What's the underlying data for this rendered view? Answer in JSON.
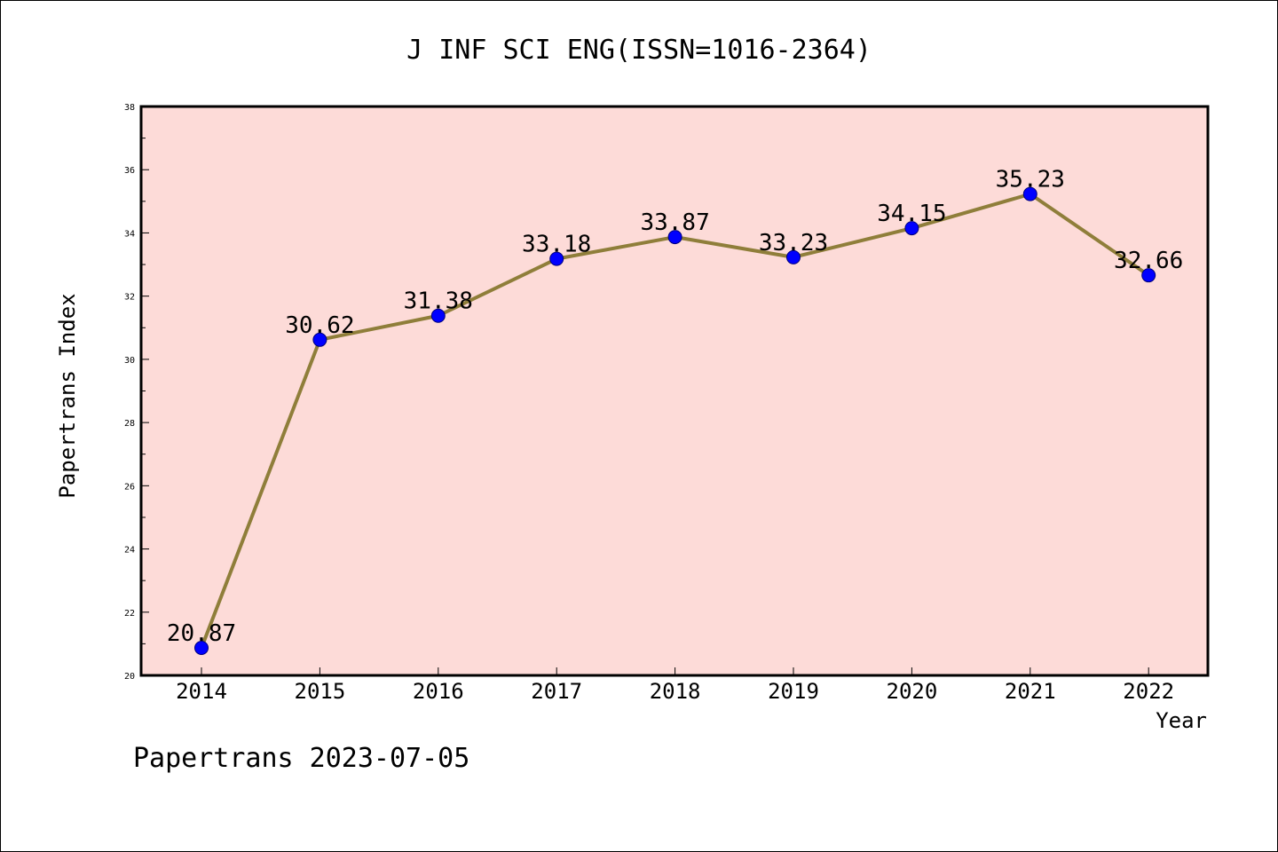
{
  "chart_data": {
    "type": "line",
    "title": "J INF SCI ENG(ISSN=1016-2364)",
    "xlabel": "Year",
    "ylabel": "Papertrans Index",
    "categories": [
      "2014",
      "2015",
      "2016",
      "2017",
      "2018",
      "2019",
      "2020",
      "2021",
      "2022"
    ],
    "series": [
      {
        "values": [
          20.87,
          30.62,
          31.38,
          33.18,
          33.87,
          33.23,
          34.15,
          35.23,
          32.66
        ]
      }
    ],
    "data_labels": [
      "20.87",
      "30.62",
      "31.38",
      "33.18",
      "33.87",
      "33.23",
      "34.15",
      "35.23",
      "32.66"
    ],
    "ylim": [
      20,
      38
    ],
    "yticks": [
      "20",
      "22",
      "24",
      "26",
      "28",
      "30",
      "32",
      "34",
      "36",
      "38"
    ],
    "grid": false,
    "legend": "none",
    "colors": {
      "plot_background": "#fddbd8",
      "line": "#8f7e3a",
      "marker": "#0000ff",
      "marker_edge": "#00007a"
    }
  },
  "footer": "Papertrans 2023-07-05"
}
